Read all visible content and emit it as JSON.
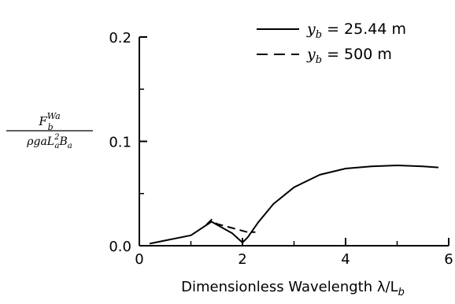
{
  "chart_data": {
    "type": "line",
    "xlabel": "Dimensionless Wavelength λ/L",
    "xlabel_sub": "b",
    "ylabel": {
      "numerator": "F",
      "numerator_sub": "b",
      "numerator_sup": "Wa",
      "denominator": "ρgaL",
      "denominator_sup": "2",
      "denominator_sub": "a",
      "denominator_tail": "B",
      "denominator_tail_sub": "a"
    },
    "xlim": [
      0,
      6
    ],
    "ylim": [
      0,
      0.2
    ],
    "xticks": [
      0,
      2,
      4,
      6
    ],
    "xtick_labels": [
      "0",
      "2",
      "4",
      "6"
    ],
    "yticks": [
      0,
      0.1,
      0.2
    ],
    "ytick_labels": [
      "0.0",
      "0.1",
      "0.2"
    ],
    "grid": false,
    "legend_position": "top-right",
    "series": [
      {
        "name": "y_b = 25.44 m",
        "legend_var": "y",
        "legend_sub": "b",
        "legend_value": "= 25.44 m",
        "style": "solid",
        "x": [
          0.2,
          0.5,
          1.0,
          1.4,
          1.8,
          2.0,
          2.1,
          2.3,
          2.6,
          3.0,
          3.5,
          4.0,
          4.5,
          5.0,
          5.5,
          5.8
        ],
        "y": [
          0.002,
          0.005,
          0.01,
          0.023,
          0.012,
          0.003,
          0.008,
          0.022,
          0.04,
          0.056,
          0.068,
          0.074,
          0.076,
          0.077,
          0.076,
          0.075
        ]
      },
      {
        "name": "y_b = 500 m",
        "legend_var": "y",
        "legend_sub": "b",
        "legend_value": "= 500 m",
        "style": "dashed",
        "x": [
          1.3,
          1.4,
          1.5,
          2.1,
          2.25
        ],
        "y": [
          0.02,
          0.025,
          0.021,
          0.013,
          0.013
        ]
      }
    ]
  }
}
